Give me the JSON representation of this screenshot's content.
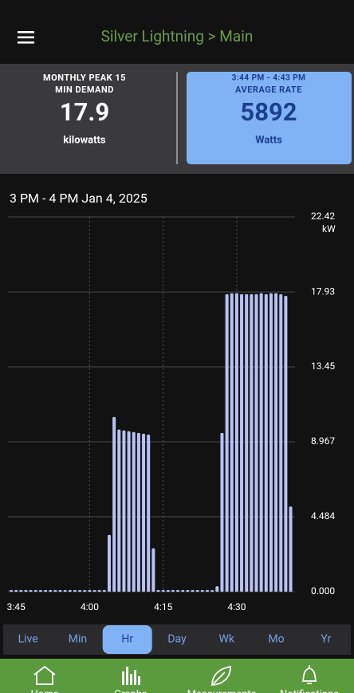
{
  "header": {
    "title": "Silver Lightning > Main"
  },
  "cards": {
    "peak": {
      "label_line1": "MONTHLY PEAK 15",
      "label_line2": "MIN DEMAND",
      "value": "17.9",
      "unit": "kilowatts"
    },
    "rate": {
      "time": "3:44 PM - 4:43 PM",
      "label": "AVERAGE RATE",
      "value": "5892",
      "unit": "Watts"
    }
  },
  "chart_data": {
    "type": "bar",
    "title": "3 PM - 4 PM Jan 4, 2025",
    "y_unit": "kW",
    "color": "#b8c2f6",
    "categories": [
      null,
      "3:45",
      null,
      null,
      null,
      null,
      null,
      null,
      null,
      null,
      null,
      null,
      null,
      null,
      null,
      null,
      "4:00",
      null,
      null,
      null,
      null,
      null,
      null,
      null,
      null,
      null,
      null,
      null,
      null,
      null,
      null,
      "4:15",
      null,
      null,
      null,
      null,
      null,
      null,
      null,
      null,
      null,
      null,
      null,
      null,
      null,
      null,
      "4:30",
      null,
      null,
      null,
      null,
      null,
      null,
      null,
      null,
      null,
      null,
      null
    ],
    "values": [
      0.1,
      0.1,
      0.1,
      0.1,
      0.1,
      0.1,
      0.1,
      0.1,
      0.1,
      0.1,
      0.1,
      0.1,
      0.1,
      0.1,
      0.1,
      0.1,
      0.1,
      0.1,
      0.1,
      0.1,
      3.4,
      10.45,
      9.7,
      9.65,
      9.6,
      9.55,
      9.5,
      9.45,
      9.4,
      2.6,
      0.1,
      0.1,
      0.1,
      0.1,
      0.1,
      0.1,
      0.1,
      0.1,
      0.1,
      0.1,
      0.1,
      0.1,
      0.33,
      9.5,
      17.8,
      17.85,
      17.85,
      17.8,
      17.8,
      17.8,
      17.8,
      17.85,
      17.8,
      17.85,
      17.85,
      17.8,
      17.7,
      5.1
    ],
    "ylim": [
      0,
      22.42
    ],
    "yticks": [
      {
        "value": 0,
        "label": "0.000"
      },
      {
        "value": 4.484,
        "label": "4.484"
      },
      {
        "value": 8.967,
        "label": "8.967"
      },
      {
        "value": 13.45,
        "label": "13.45"
      },
      {
        "value": 17.93,
        "label": "17.93"
      },
      {
        "value": 22.42,
        "label": "22.42"
      }
    ],
    "grid": true
  },
  "tabs": [
    "Live",
    "Min",
    "Hr",
    "Day",
    "Wk",
    "Mo",
    "Yr"
  ],
  "selected_tab": 2,
  "nav": [
    "Home",
    "Graphs",
    "Measurements",
    "Notifications"
  ]
}
